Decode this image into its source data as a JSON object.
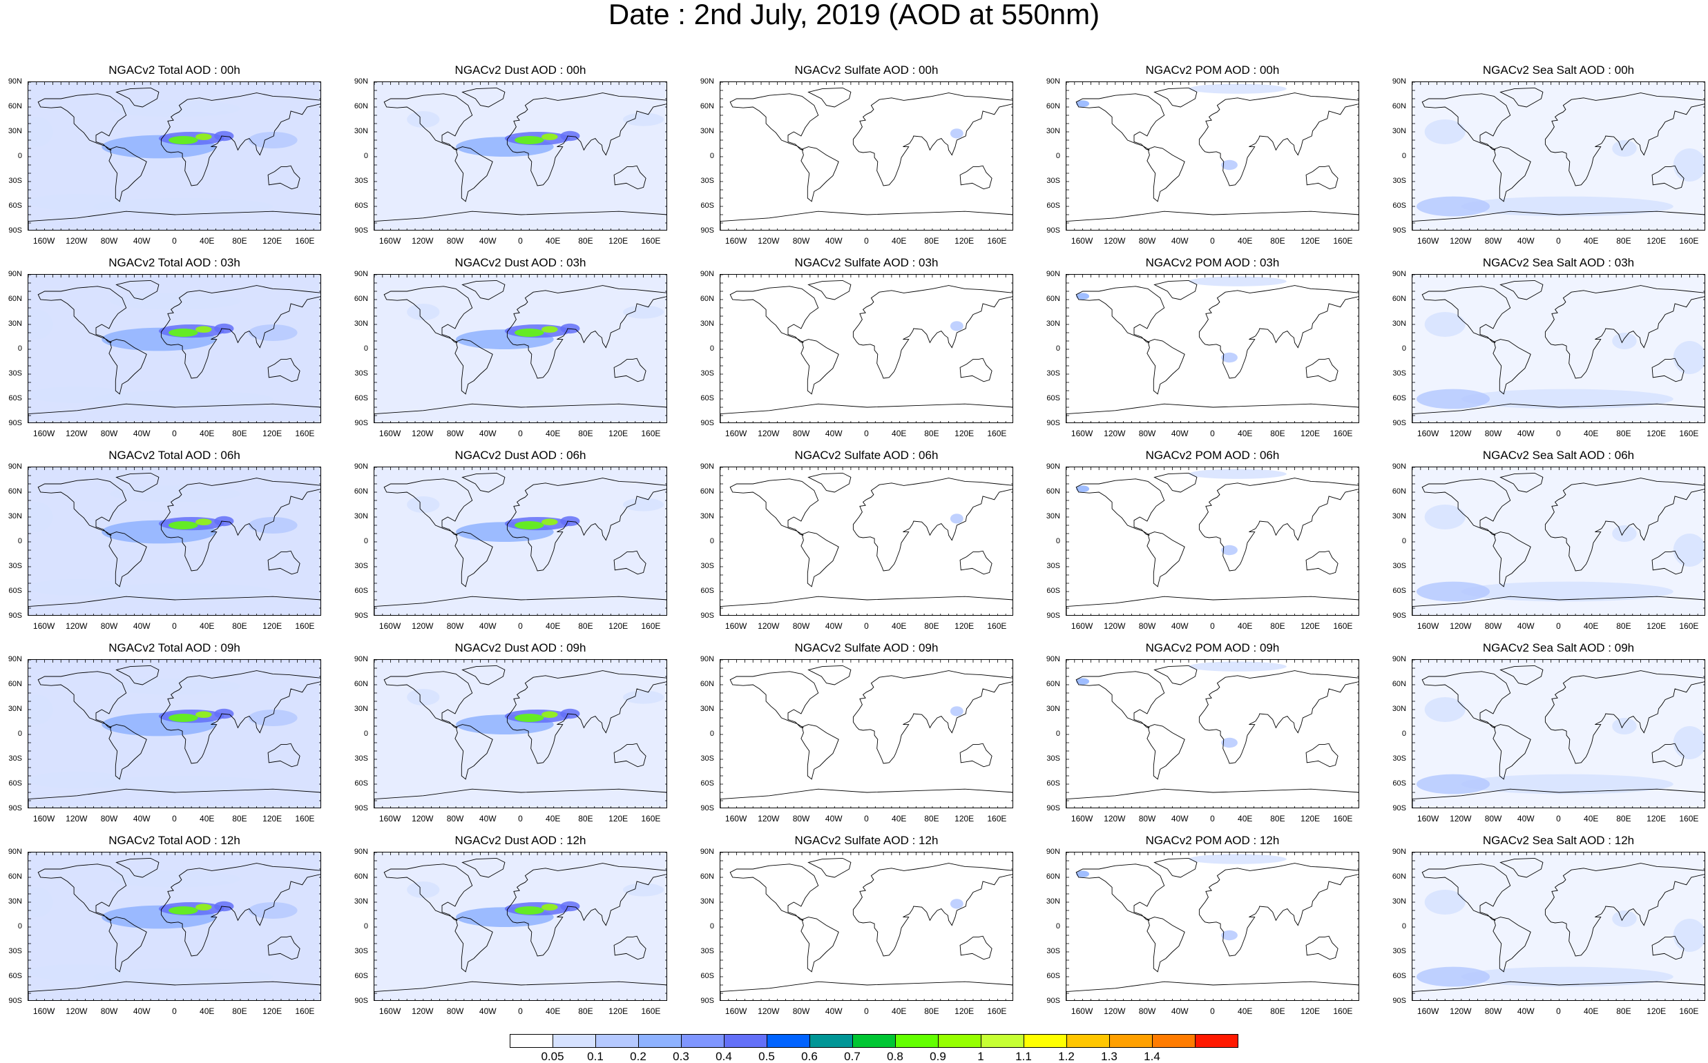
{
  "title": "Date : 2nd July, 2019 (AOD at 550nm)",
  "lat_ticks": [
    "90N",
    "60N",
    "30N",
    "0",
    "30S",
    "60S",
    "90S"
  ],
  "lon_ticks": [
    "160W",
    "120W",
    "80W",
    "40W",
    "0",
    "40E",
    "80E",
    "120E",
    "160E"
  ],
  "species": [
    {
      "key": "total",
      "intensity": 1.0,
      "color": "#b9cbff"
    },
    {
      "key": "dust",
      "intensity": 0.8,
      "color": "#c9d6ff"
    },
    {
      "key": "sulfate",
      "intensity": 0.1,
      "color": "#dbe4ff"
    },
    {
      "key": "pom",
      "intensity": 0.25,
      "color": "#c9d6ff"
    },
    {
      "key": "seasalt",
      "intensity": 0.5,
      "color": "#c9d6ff"
    }
  ],
  "rows": [
    [
      "NGACv2 Total AOD : 00h",
      "NGACv2 Dust AOD : 00h",
      "NGACv2 Sulfate AOD : 00h",
      "NGACv2 POM AOD : 00h",
      "NGACv2 Sea Salt AOD : 00h"
    ],
    [
      "NGACv2 Total AOD : 03h",
      "NGACv2 Dust AOD : 03h",
      "NGACv2 Sulfate AOD : 03h",
      "NGACv2 POM AOD : 03h",
      "NGACv2 Sea Salt AOD : 03h"
    ],
    [
      "NGACv2 Total AOD : 06h",
      "NGACv2 Dust AOD : 06h",
      "NGACv2 Sulfate AOD : 06h",
      "NGACv2 POM AOD : 06h",
      "NGACv2 Sea Salt AOD : 06h"
    ],
    [
      "NGACv2 Total AOD : 09h",
      "NGACv2 Dust AOD : 09h",
      "NGACv2 Sulfate AOD : 09h",
      "NGACv2 POM AOD : 09h",
      "NGACv2 Sea Salt  AOD : 09h"
    ],
    [
      "NGACv2 Total AOD  : 12h",
      "NGACv2 Dust AOD : 12h",
      "NGACv2 Sulfate AOD : 12h",
      "NGACv2 POM  AOD : 12h",
      "NGACv2 Sea Salt  AOD : 12h"
    ]
  ],
  "colorbar": {
    "labels": [
      "0.05",
      "0.1",
      "0.2",
      "0.3",
      "0.4",
      "0.5",
      "0.6",
      "0.7",
      "0.8",
      "0.9",
      "1",
      "1.1",
      "1.2",
      "1.3",
      "1.4"
    ],
    "colors": [
      "#ffffff",
      "#d6e2ff",
      "#b5c9ff",
      "#8eb2ff",
      "#7f96ff",
      "#6370f8",
      "#0063ff",
      "#009696",
      "#00c633",
      "#63ff00",
      "#96ff00",
      "#c6ff33",
      "#ffff00",
      "#ffc600",
      "#ffa000",
      "#ff7c00",
      "#ff1900"
    ]
  }
}
